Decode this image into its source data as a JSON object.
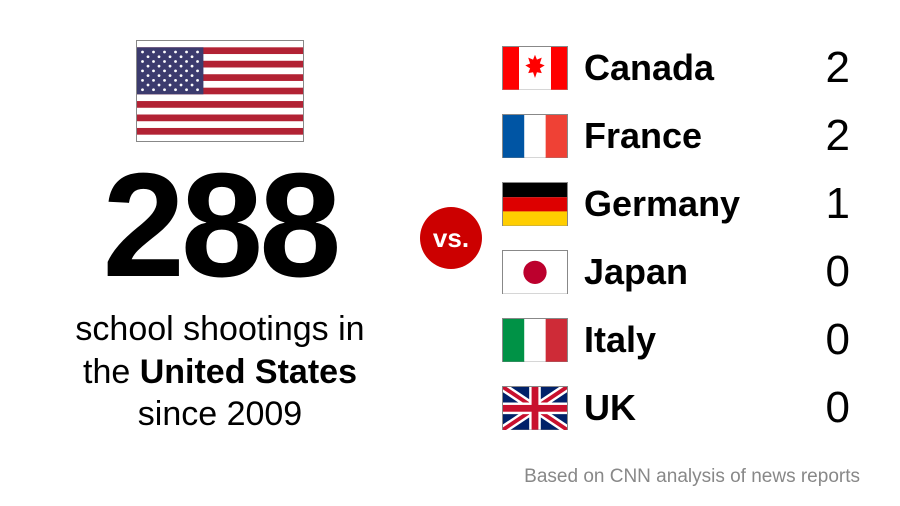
{
  "main": {
    "big_number": "288",
    "big_number_fontsize": 148,
    "subtext_line1": "school shootings in",
    "subtext_line2_pre": "the ",
    "subtext_line2_bold": "United States",
    "subtext_line3": "since 2009",
    "subtext_fontsize": 34,
    "us_flag_colors": {
      "red": "#b22234",
      "white": "#ffffff",
      "blue": "#3c3b6e"
    }
  },
  "vs": {
    "label": "vs.",
    "bg": "#cc0000",
    "fontsize": 26
  },
  "countries": [
    {
      "name": "Canada",
      "value": "2",
      "flag": "canada"
    },
    {
      "name": "France",
      "value": "2",
      "flag": "france"
    },
    {
      "name": "Germany",
      "value": "1",
      "flag": "germany"
    },
    {
      "name": "Japan",
      "value": "0",
      "flag": "japan"
    },
    {
      "name": "Italy",
      "value": "0",
      "flag": "italy"
    },
    {
      "name": "UK",
      "value": "0",
      "flag": "uk"
    }
  ],
  "country_name_fontsize": 36,
  "country_value_fontsize": 44,
  "flag_colors": {
    "canada": {
      "side": "#ff0000",
      "mid": "#ffffff",
      "leaf": "#ff0000"
    },
    "france": {
      "a": "#0055a4",
      "b": "#ffffff",
      "c": "#ef4135"
    },
    "germany": {
      "a": "#000000",
      "b": "#dd0000",
      "c": "#ffce00"
    },
    "japan": {
      "bg": "#ffffff",
      "circle": "#bc002d"
    },
    "italy": {
      "a": "#009246",
      "b": "#ffffff",
      "c": "#ce2b37"
    },
    "uk": {
      "blue": "#012169",
      "white": "#ffffff",
      "red": "#c8102e"
    }
  },
  "source": "Based on CNN analysis of news reports"
}
